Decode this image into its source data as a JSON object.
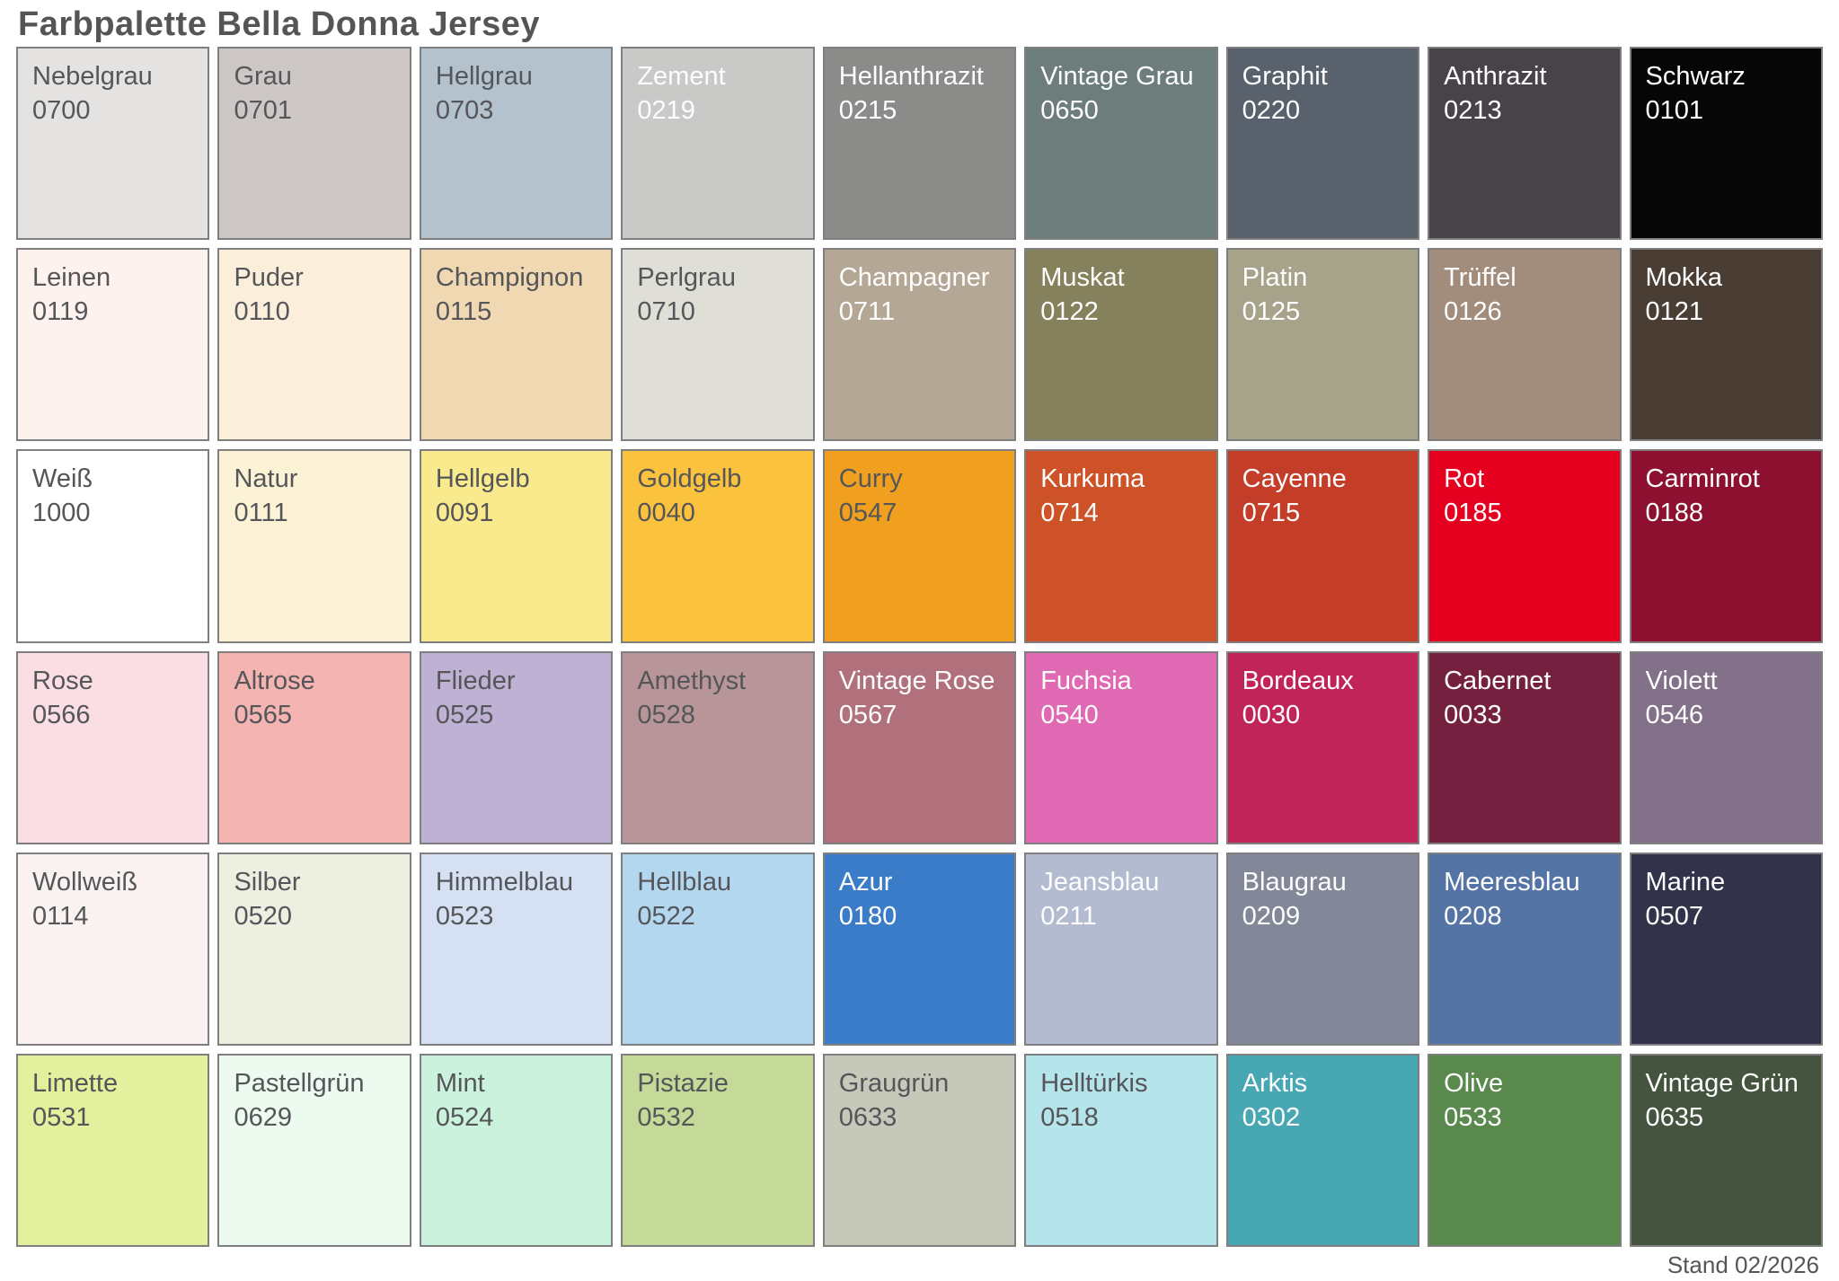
{
  "title": "Farbpalette Bella Donna Jersey",
  "footer": "Stand 02/2026",
  "background": "#ffffff",
  "border_color": "#7f7f7f",
  "text_colors": {
    "dark": "#55565a",
    "light": "#fdfdfd"
  },
  "swatches": [
    {
      "name": "Nebelgrau",
      "code": "0700",
      "hex": "#e4e3e1",
      "text": "dark"
    },
    {
      "name": "Grau",
      "code": "0701",
      "hex": "#cdc8c6",
      "text": "dark"
    },
    {
      "name": "Hellgrau",
      "code": "0703",
      "hex": "#b3c2cc",
      "text": "dark"
    },
    {
      "name": "Zement",
      "code": "0219",
      "hex": "#c9cac8",
      "text": "light"
    },
    {
      "name": "Hellanthrazit",
      "code": "0215",
      "hex": "#8b8b89",
      "text": "light"
    },
    {
      "name": "Vintage Grau",
      "code": "0650",
      "hex": "#6d7d7b",
      "text": "light"
    },
    {
      "name": "Graphit",
      "code": "0220",
      "hex": "#59626c",
      "text": "light"
    },
    {
      "name": "Anthrazit",
      "code": "0213",
      "hex": "#474349",
      "text": "light"
    },
    {
      "name": "Schwarz",
      "code": "0101",
      "hex": "#060606",
      "text": "light"
    },
    {
      "name": "Leinen",
      "code": "0119",
      "hex": "#fdf2ed",
      "text": "dark"
    },
    {
      "name": "Puder",
      "code": "0110",
      "hex": "#fbeedb",
      "text": "dark"
    },
    {
      "name": "Champignon",
      "code": "0115",
      "hex": "#f0d8b3",
      "text": "dark"
    },
    {
      "name": "Perlgrau",
      "code": "0710",
      "hex": "#dfded7",
      "text": "dark"
    },
    {
      "name": "Champagner",
      "code": "0711",
      "hex": "#b5a795",
      "text": "light"
    },
    {
      "name": "Muskat",
      "code": "0122",
      "hex": "#85815d",
      "text": "light"
    },
    {
      "name": "Platin",
      "code": "0125",
      "hex": "#a7a28a",
      "text": "light"
    },
    {
      "name": "Trüffel",
      "code": "0126",
      "hex": "#a28d7c",
      "text": "light"
    },
    {
      "name": "Mokka",
      "code": "0121",
      "hex": "#4a3d34",
      "text": "light"
    },
    {
      "name": "Weiß",
      "code": "1000",
      "hex": "#ffffff",
      "text": "dark"
    },
    {
      "name": "Natur",
      "code": "0111",
      "hex": "#fcf3d7",
      "text": "dark"
    },
    {
      "name": "Hellgelb",
      "code": "0091",
      "hex": "#f9ea8e",
      "text": "dark"
    },
    {
      "name": "Goldgelb",
      "code": "0040",
      "hex": "#fbc23e",
      "text": "dark"
    },
    {
      "name": "Curry",
      "code": "0547",
      "hex": "#f0a01e",
      "text": "dark"
    },
    {
      "name": "Kurkuma",
      "code": "0714",
      "hex": "#cd5227",
      "text": "light"
    },
    {
      "name": "Cayenne",
      "code": "0715",
      "hex": "#c33d28",
      "text": "light"
    },
    {
      "name": "Rot",
      "code": "0185",
      "hex": "#e50020",
      "text": "light"
    },
    {
      "name": "Carminrot",
      "code": "0188",
      "hex": "#8d1030",
      "text": "light"
    },
    {
      "name": "Rose",
      "code": "0566",
      "hex": "#fbdde4",
      "text": "dark"
    },
    {
      "name": "Altrose",
      "code": "0565",
      "hex": "#f4b4b2",
      "text": "dark"
    },
    {
      "name": "Flieder",
      "code": "0525",
      "hex": "#bfb1d3",
      "text": "dark"
    },
    {
      "name": "Amethyst",
      "code": "0528",
      "hex": "#b79598",
      "text": "dark"
    },
    {
      "name": "Vintage Rose",
      "code": "0567",
      "hex": "#b0717d",
      "text": "light"
    },
    {
      "name": "Fuchsia",
      "code": "0540",
      "hex": "#df69b2",
      "text": "light"
    },
    {
      "name": "Bordeaux",
      "code": "0030",
      "hex": "#c02459",
      "text": "light"
    },
    {
      "name": "Cabernet",
      "code": "0033",
      "hex": "#75203f",
      "text": "light"
    },
    {
      "name": "Violett",
      "code": "0546",
      "hex": "#837089",
      "text": "light"
    },
    {
      "name": "Wollweiß",
      "code": "0114",
      "hex": "#faf2f0",
      "text": "dark"
    },
    {
      "name": "Silber",
      "code": "0520",
      "hex": "#edf0e0",
      "text": "dark"
    },
    {
      "name": "Himmelblau",
      "code": "0523",
      "hex": "#d5e1f2",
      "text": "dark"
    },
    {
      "name": "Hellblau",
      "code": "0522",
      "hex": "#b4d7f0",
      "text": "dark"
    },
    {
      "name": "Azur",
      "code": "0180",
      "hex": "#3b7cc8",
      "text": "light"
    },
    {
      "name": "Jeansblau",
      "code": "0211",
      "hex": "#b3bbd0",
      "text": "light"
    },
    {
      "name": "Blaugrau",
      "code": "0209",
      "hex": "#838898",
      "text": "light"
    },
    {
      "name": "Meeresblau",
      "code": "0208",
      "hex": "#5574a6",
      "text": "light"
    },
    {
      "name": "Marine",
      "code": "0507",
      "hex": "#32324b",
      "text": "light"
    },
    {
      "name": "Limette",
      "code": "0531",
      "hex": "#e3f09e",
      "text": "dark"
    },
    {
      "name": "Pastellgrün",
      "code": "0629",
      "hex": "#edfaf0",
      "text": "dark"
    },
    {
      "name": "Mint",
      "code": "0524",
      "hex": "#cbf2dc",
      "text": "dark"
    },
    {
      "name": "Pistazie",
      "code": "0532",
      "hex": "#c5d998",
      "text": "dark"
    },
    {
      "name": "Graugrün",
      "code": "0633",
      "hex": "#c6c9ba",
      "text": "dark"
    },
    {
      "name": "Helltürkis",
      "code": "0518",
      "hex": "#b5e4eb",
      "text": "dark"
    },
    {
      "name": "Arktis",
      "code": "0302",
      "hex": "#47a7b2",
      "text": "light"
    },
    {
      "name": "Olive",
      "code": "0533",
      "hex": "#59894c",
      "text": "light"
    },
    {
      "name": "Vintage Grün",
      "code": "0635",
      "hex": "#44543e",
      "text": "light"
    }
  ]
}
